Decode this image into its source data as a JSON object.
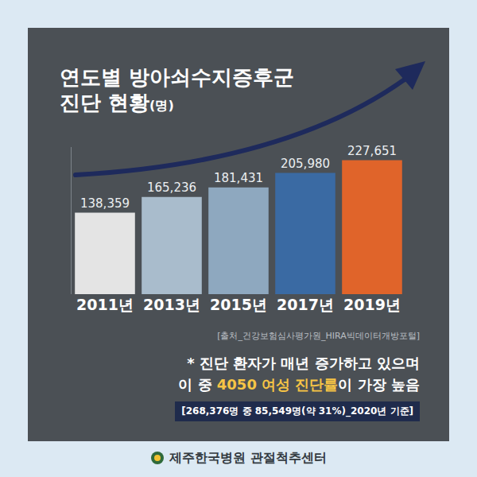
{
  "chart_data": {
    "type": "bar",
    "title": "연도별 방아쇠수지증후군\n진단 현황(명)",
    "categories": [
      "2011년",
      "2013년",
      "2015년",
      "2017년",
      "2019년"
    ],
    "values": [
      138359,
      165236,
      181431,
      205980,
      227651
    ],
    "value_labels": [
      "138,359",
      "165,236",
      "181,431",
      "205,980",
      "227,651"
    ],
    "colors": [
      "#e4e4e4",
      "#a9bccc",
      "#8ea8bf",
      "#3a6aa3",
      "#e0642a"
    ],
    "data_labels": true,
    "tick_labels": "x",
    "grid": false,
    "ylim": [
      0,
      250000
    ],
    "source": "[출처_건강보험심사평가원_HIRA빅데이터개방포털]",
    "annotations": [
      "* 진단 환자가 매년 증가하고 있으며\n이 중 4050 여성 진단률이 가장 높음",
      "[268,376명 중 85,549명(약 31%)_2020년 기준]"
    ],
    "highlight": "4050 여성 진단률",
    "footer": "제주한국병원 관절척추센터"
  }
}
